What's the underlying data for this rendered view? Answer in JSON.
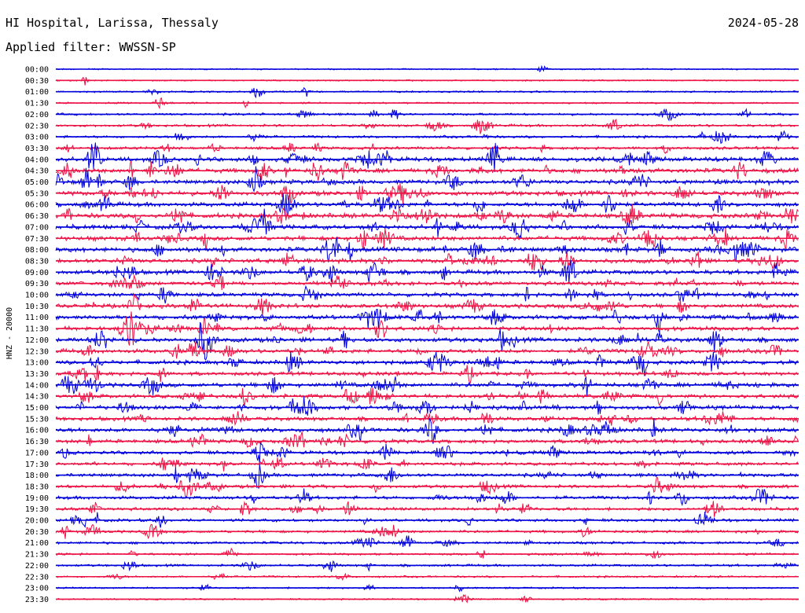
{
  "header": {
    "station": "HI Hospital, Larissa, Thessaly",
    "date": "2024-05-28",
    "filter": "Applied filter: WWSSN-SP"
  },
  "chart_data": {
    "type": "line",
    "title": "HI Hospital, Larissa, Thessaly",
    "ylabel": "HNZ - 20000",
    "xlabel": "",
    "colors": {
      "odd_rows": "#0000dd",
      "even_rows": "#ee1144"
    },
    "rows": [
      {
        "label": "00:00",
        "activity": 0.08
      },
      {
        "label": "00:30",
        "activity": 0.06
      },
      {
        "label": "01:00",
        "activity": 0.15
      },
      {
        "label": "01:30",
        "activity": 0.12
      },
      {
        "label": "02:00",
        "activity": 0.3
      },
      {
        "label": "02:30",
        "activity": 0.35
      },
      {
        "label": "03:00",
        "activity": 0.35
      },
      {
        "label": "03:30",
        "activity": 0.45
      },
      {
        "label": "04:00",
        "activity": 0.85
      },
      {
        "label": "04:30",
        "activity": 0.85
      },
      {
        "label": "05:00",
        "activity": 0.8
      },
      {
        "label": "05:30",
        "activity": 0.9
      },
      {
        "label": "06:00",
        "activity": 0.8
      },
      {
        "label": "06:30",
        "activity": 0.9
      },
      {
        "label": "07:00",
        "activity": 0.85
      },
      {
        "label": "07:30",
        "activity": 0.85
      },
      {
        "label": "08:00",
        "activity": 0.9
      },
      {
        "label": "08:30",
        "activity": 0.8
      },
      {
        "label": "09:00",
        "activity": 0.8
      },
      {
        "label": "09:30",
        "activity": 0.7
      },
      {
        "label": "10:00",
        "activity": 0.7
      },
      {
        "label": "10:30",
        "activity": 0.75
      },
      {
        "label": "11:00",
        "activity": 0.85
      },
      {
        "label": "11:30",
        "activity": 0.75
      },
      {
        "label": "12:00",
        "activity": 0.85
      },
      {
        "label": "12:30",
        "activity": 0.75
      },
      {
        "label": "13:00",
        "activity": 0.75
      },
      {
        "label": "13:30",
        "activity": 0.65
      },
      {
        "label": "14:00",
        "activity": 0.8
      },
      {
        "label": "14:30",
        "activity": 0.7
      },
      {
        "label": "15:00",
        "activity": 0.75
      },
      {
        "label": "15:30",
        "activity": 0.7
      },
      {
        "label": "16:00",
        "activity": 0.8
      },
      {
        "label": "16:30",
        "activity": 0.65
      },
      {
        "label": "17:00",
        "activity": 0.6
      },
      {
        "label": "17:30",
        "activity": 0.55
      },
      {
        "label": "18:00",
        "activity": 0.6
      },
      {
        "label": "18:30",
        "activity": 0.55
      },
      {
        "label": "19:00",
        "activity": 0.55
      },
      {
        "label": "19:30",
        "activity": 0.5
      },
      {
        "label": "20:00",
        "activity": 0.45
      },
      {
        "label": "20:30",
        "activity": 0.4
      },
      {
        "label": "21:00",
        "activity": 0.35
      },
      {
        "label": "21:30",
        "activity": 0.25
      },
      {
        "label": "22:00",
        "activity": 0.3
      },
      {
        "label": "22:30",
        "activity": 0.2
      },
      {
        "label": "23:00",
        "activity": 0.15
      },
      {
        "label": "23:30",
        "activity": 0.1
      }
    ]
  }
}
